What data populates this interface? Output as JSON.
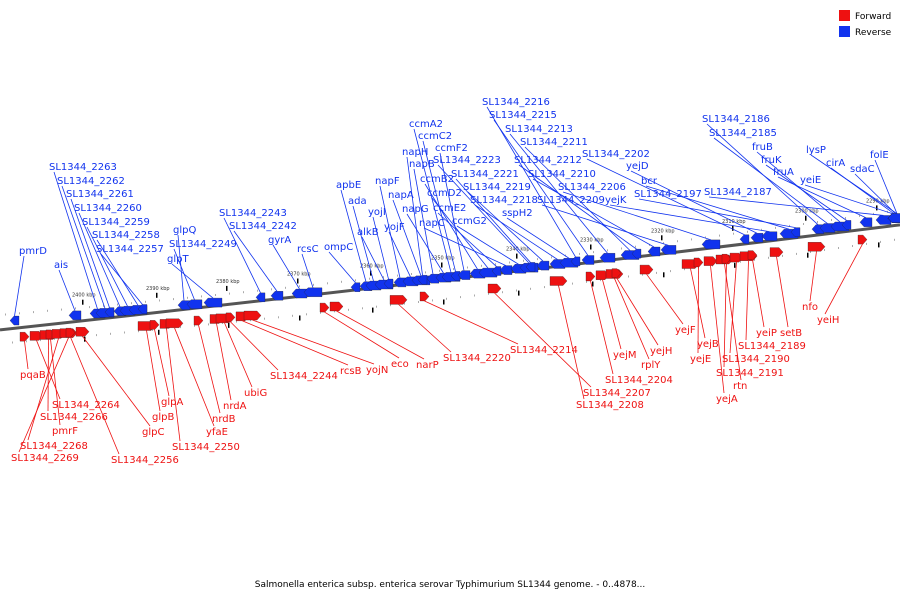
{
  "colors": {
    "forward": "#ee1111",
    "reverse": "#1133ee",
    "backbone": "#888888"
  },
  "legend": [
    {
      "label": "Forward",
      "strand": "forward"
    },
    {
      "label": "Reverse",
      "strand": "reverse"
    }
  ],
  "caption": "Salmonella enterica subsp. enterica serovar Typhimurium SL1344 genome. - 0..4878...",
  "ticks": [
    "2400 kbp",
    "2390 kbp",
    "2380 kbp",
    "2370 kbp",
    "2360 kbp",
    "2350 kbp",
    "2340 kbp",
    "2330 kbp",
    "2320 kbp",
    "2310 kbp",
    "2300 kbp",
    "2290 kbp"
  ],
  "reverse_genes": [
    "pmrD",
    "ais",
    "SL1344_2263",
    "SL1344_2262",
    "SL1344_2261",
    "SL1344_2260",
    "SL1344_2259",
    "SL1344_2258",
    "SL1344_2257",
    "glpQ",
    "SL1344_2249",
    "glpT",
    "SL1344_2243",
    "SL1344_2242",
    "gyrA",
    "rcsC",
    "ompC",
    "apbE",
    "ada",
    "alkB",
    "yojI",
    "napF",
    "yojF",
    "napA",
    "napH",
    "napB",
    "napG",
    "ccmA2",
    "ccmC2",
    "ccmF2",
    "ccmB2",
    "ccmD2",
    "ccmE2",
    "napC",
    "ccmG2",
    "SL1344_2223",
    "SL1344_2221",
    "SL1344_2219",
    "SL1344_2218",
    "sspH2",
    "SL1344_2216",
    "SL1344_2215",
    "SL1344_2213",
    "SL1344_2211",
    "SL1344_2212",
    "SL1344_2210",
    "SL1344_2209",
    "SL1344_2206",
    "SL1344_2202",
    "yejD",
    "yejK",
    "bcr",
    "SL1344_2197",
    "SL1344_2186",
    "SL1344_2185",
    "fruB",
    "fruK",
    "fruA",
    "SL1344_2187",
    "lysP",
    "yeiE",
    "cirA",
    "sdaC",
    "folE"
  ],
  "forward_genes": [
    "pqaB",
    "SL1344_2264",
    "SL1344_2266",
    "pmrF",
    "SL1344_2268",
    "SL1344_2269",
    "SL1344_2256",
    "glpC",
    "glpB",
    "glpA",
    "SL1344_2250",
    "yfaE",
    "nrdB",
    "nrdA",
    "ubiG",
    "SL1344_2244",
    "rcsB",
    "yojN",
    "eco",
    "narP",
    "SL1344_2220",
    "SL1344_2214",
    "SL1344_2207",
    "SL1344_2208",
    "SL1344_2204",
    "yejM",
    "rplY",
    "yejH",
    "yejF",
    "yejB",
    "yejE",
    "yejA",
    "rtn",
    "SL1344_2191",
    "SL1344_2190",
    "SL1344_2189",
    "yeiP",
    "setB",
    "nfo",
    "yeiH"
  ]
}
